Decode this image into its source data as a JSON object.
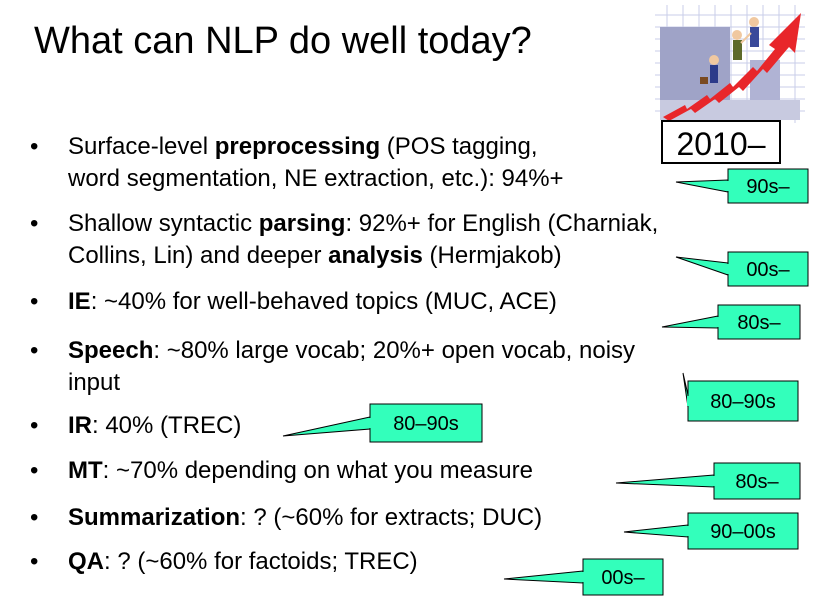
{
  "title": "What can NLP do well today?",
  "year_label": "2010–",
  "bullet_symbol": "•",
  "bullets": [
    {
      "lines": [
        [
          {
            "t": "Surface-level ",
            "b": false
          },
          {
            "t": "preprocessing",
            "b": true
          },
          {
            "t": " (POS tagging,",
            "b": false
          }
        ],
        [
          {
            "t": "word segmentation, NE extraction, etc.): 94%+",
            "b": false
          }
        ]
      ]
    },
    {
      "lines": [
        [
          {
            "t": "Shallow syntactic ",
            "b": false
          },
          {
            "t": "parsing",
            "b": true
          },
          {
            "t": ": 92%+ for English (Charniak,",
            "b": false
          }
        ],
        [
          {
            "t": "Collins, Lin) and deeper ",
            "b": false
          },
          {
            "t": "analysis",
            "b": true
          },
          {
            "t": " (Hermjakob)",
            "b": false
          }
        ]
      ]
    },
    {
      "lines": [
        [
          {
            "t": "IE",
            "b": true
          },
          {
            "t": ": ~40% for well-behaved topics (MUC, ACE)",
            "b": false
          }
        ]
      ]
    },
    {
      "lines": [
        [
          {
            "t": "Speech",
            "b": true
          },
          {
            "t": ": ~80% large vocab; 20%+ open vocab, noisy",
            "b": false
          }
        ],
        [
          {
            "t": "input",
            "b": false
          }
        ]
      ]
    },
    {
      "lines": [
        [
          {
            "t": "IR",
            "b": true
          },
          {
            "t": ": 40% (TREC)",
            "b": false
          }
        ]
      ]
    },
    {
      "lines": [
        [
          {
            "t": "MT",
            "b": true
          },
          {
            "t": ": ~70% depending on what you measure",
            "b": false
          }
        ]
      ]
    },
    {
      "lines": [
        [
          {
            "t": "Summarization",
            "b": true
          },
          {
            "t": ": ? (~60% for extracts; DUC)",
            "b": false
          }
        ]
      ]
    },
    {
      "lines": [
        [
          {
            "t": "QA",
            "b": true
          },
          {
            "t": ": ? (~60% for factoids; TREC)",
            "b": false
          }
        ]
      ]
    }
  ],
  "callouts": [
    "90s–",
    "00s–",
    "80s–",
    "80–90s",
    "80–90s",
    "80s–",
    "90–00s",
    "00s–"
  ],
  "colors": {
    "callout_fill": "#33ffbb",
    "callout_border": "#000000"
  },
  "illustration_icon": "business-people-climbing-rising-arrow"
}
